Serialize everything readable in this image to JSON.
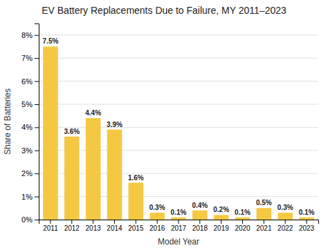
{
  "chart_data": {
    "type": "bar",
    "title": "EV Battery Replacements Due to Failure, MY 2011–2023",
    "xlabel": "Model Year",
    "ylabel": "Share of Batteries",
    "categories": [
      "2011",
      "2012",
      "2013",
      "2014",
      "2015",
      "2016",
      "2017",
      "2018",
      "2019",
      "2020",
      "2021",
      "2022",
      "2023"
    ],
    "values": [
      7.5,
      3.6,
      4.4,
      3.9,
      1.6,
      0.3,
      0.1,
      0.4,
      0.2,
      0.1,
      0.5,
      0.3,
      0.1
    ],
    "value_labels": [
      "7.5%",
      "3.6%",
      "4.4%",
      "3.9%",
      "1.6%",
      "0.3%",
      "0.1%",
      "0.4%",
      "0.2%",
      "0.1%",
      "0.5%",
      "0.3%",
      "0.1%"
    ],
    "data_labels": true,
    "color": "#F5C842",
    "ylim": [
      0,
      8.5
    ],
    "yticks": [
      {
        "value": 0,
        "label": "0%"
      },
      {
        "value": 1,
        "label": "1%"
      },
      {
        "value": 2,
        "label": "2%"
      },
      {
        "value": 3,
        "label": "3%"
      },
      {
        "value": 4,
        "label": "4%"
      },
      {
        "value": 5,
        "label": "5%"
      },
      {
        "value": 6,
        "label": "6%"
      },
      {
        "value": 7,
        "label": "7%"
      },
      {
        "value": 8,
        "label": "8%"
      }
    ],
    "grid": true
  }
}
